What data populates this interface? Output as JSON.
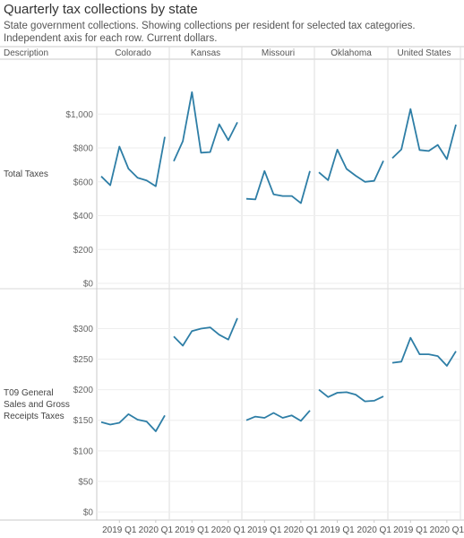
{
  "header": {
    "title": "Quarterly tax collections by state",
    "subtitle": "State government collections. Showing collections per resident for selected tax categories. Independent axis for each row. Current dollars."
  },
  "chart_data": {
    "type": "line",
    "row_header_label": "Description",
    "columns": [
      "Colorado",
      "Kansas",
      "Missouri",
      "Oklahoma",
      "United States"
    ],
    "x_ticks": [
      "2019 Q1",
      "2020 Q1"
    ],
    "x": [
      "2018 Q3",
      "2018 Q4",
      "2019 Q1",
      "2019 Q2",
      "2019 Q3",
      "2019 Q4",
      "2020 Q1",
      "2020 Q2"
    ],
    "line_color": "#2e7ea6",
    "grid": true,
    "rows": [
      {
        "label": "Total Taxes",
        "ylim": [
          0,
          1150
        ],
        "y_ticks": [
          0,
          200,
          400,
          600,
          800,
          1000
        ],
        "y_tick_labels": [
          "$0",
          "$200",
          "$400",
          "$600",
          "$800",
          "$1,000"
        ],
        "series": [
          {
            "column": "Colorado",
            "values": [
              632,
              580,
              808,
              678,
              624,
              608,
              574,
              866
            ]
          },
          {
            "column": "Kansas",
            "values": [
              722,
              840,
              1130,
              772,
              776,
              940,
              846,
              952
            ]
          },
          {
            "column": "Missouri",
            "values": [
              500,
              496,
              664,
              526,
              516,
              516,
              474,
              664
            ]
          },
          {
            "column": "Oklahoma",
            "values": [
              656,
              610,
              790,
              676,
              636,
              600,
              606,
              724
            ]
          },
          {
            "column": "United States",
            "values": [
              740,
              792,
              1030,
              788,
              782,
              818,
              734,
              938
            ]
          }
        ]
      },
      {
        "label": "T09 General Sales and Gross Receipts Taxes",
        "ylim": [
          0,
          330
        ],
        "y_ticks": [
          0,
          50,
          100,
          150,
          200,
          250,
          300
        ],
        "y_tick_labels": [
          "$0",
          "$50",
          "$100",
          "$150",
          "$200",
          "$250",
          "$300"
        ],
        "series": [
          {
            "column": "Colorado",
            "values": [
              147,
              143,
              146,
              160,
              151,
              148,
              132,
              158
            ]
          },
          {
            "column": "Kansas",
            "values": [
              287,
              272,
              296,
              300,
              302,
              290,
              282,
              317
            ]
          },
          {
            "column": "Missouri",
            "values": [
              150,
              156,
              154,
              162,
              154,
              158,
              149,
              166
            ]
          },
          {
            "column": "Oklahoma",
            "values": [
              200,
              188,
              195,
              196,
              192,
              181,
              182,
              189
            ]
          },
          {
            "column": "United States",
            "values": [
              244,
              246,
              285,
              258,
              258,
              255,
              239,
              263
            ]
          }
        ]
      }
    ]
  }
}
